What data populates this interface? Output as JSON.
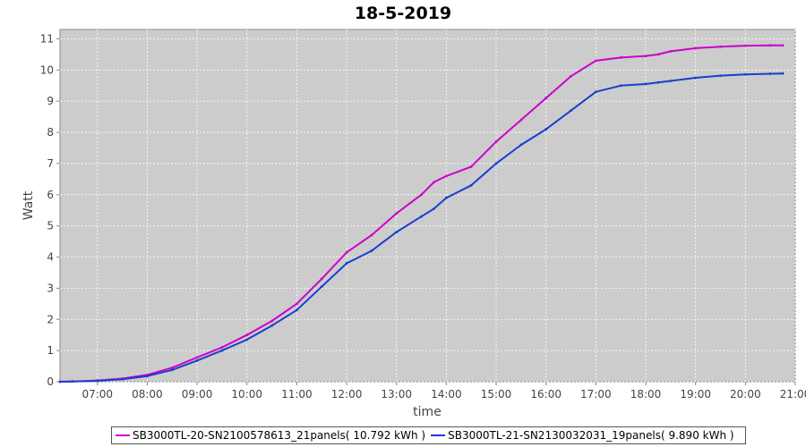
{
  "chart_data": {
    "type": "line",
    "title": "18-5-2019",
    "xlabel": "time",
    "ylabel": "Watt",
    "x_ticks": [
      "07:00",
      "08:00",
      "09:00",
      "10:00",
      "11:00",
      "12:00",
      "13:00",
      "14:00",
      "15:00",
      "16:00",
      "17:00",
      "18:00",
      "19:00",
      "20:00",
      "21:00"
    ],
    "y_ticks": [
      0,
      1,
      2,
      3,
      4,
      5,
      6,
      7,
      8,
      9,
      10,
      11
    ],
    "xlim": [
      "06:15",
      "21:00"
    ],
    "ylim": [
      0,
      11.3
    ],
    "grid": true,
    "legend_position": "bottom",
    "background_color": "#cccccc",
    "series": [
      {
        "name": "SB3000TL-20-SN2100578613_21panels( 10.792 kWh )",
        "color": "#cc00cc",
        "x": [
          "06:15",
          "06:30",
          "07:00",
          "07:30",
          "08:00",
          "08:30",
          "09:00",
          "09:30",
          "10:00",
          "10:30",
          "11:00",
          "11:30",
          "12:00",
          "12:30",
          "13:00",
          "13:30",
          "13:45",
          "14:00",
          "14:30",
          "15:00",
          "15:30",
          "16:00",
          "16:30",
          "17:00",
          "17:30",
          "18:00",
          "18:15",
          "18:30",
          "19:00",
          "19:30",
          "20:00",
          "20:30",
          "20:45"
        ],
        "values": [
          0.0,
          0.01,
          0.04,
          0.1,
          0.22,
          0.45,
          0.78,
          1.1,
          1.5,
          1.95,
          2.5,
          3.3,
          4.15,
          4.7,
          5.4,
          6.0,
          6.4,
          6.6,
          6.9,
          7.7,
          8.4,
          9.1,
          9.8,
          10.3,
          10.4,
          10.45,
          10.5,
          10.6,
          10.7,
          10.75,
          10.78,
          10.79,
          10.79
        ]
      },
      {
        "name": "SB3000TL-21-SN2130032031_19panels( 9.890 kWh )",
        "color": "#1a3fcc",
        "x": [
          "06:15",
          "06:30",
          "07:00",
          "07:30",
          "08:00",
          "08:30",
          "09:00",
          "09:30",
          "10:00",
          "10:30",
          "11:00",
          "11:30",
          "12:00",
          "12:30",
          "13:00",
          "13:30",
          "13:45",
          "14:00",
          "14:30",
          "15:00",
          "15:30",
          "16:00",
          "16:30",
          "17:00",
          "17:30",
          "18:00",
          "18:15",
          "18:30",
          "19:00",
          "19:30",
          "20:00",
          "20:30",
          "20:45"
        ],
        "values": [
          0.0,
          0.01,
          0.03,
          0.08,
          0.18,
          0.38,
          0.68,
          1.0,
          1.35,
          1.8,
          2.3,
          3.05,
          3.8,
          4.2,
          4.8,
          5.3,
          5.55,
          5.9,
          6.3,
          7.0,
          7.6,
          8.1,
          8.7,
          9.3,
          9.5,
          9.55,
          9.6,
          9.65,
          9.75,
          9.82,
          9.86,
          9.88,
          9.89
        ]
      }
    ]
  }
}
